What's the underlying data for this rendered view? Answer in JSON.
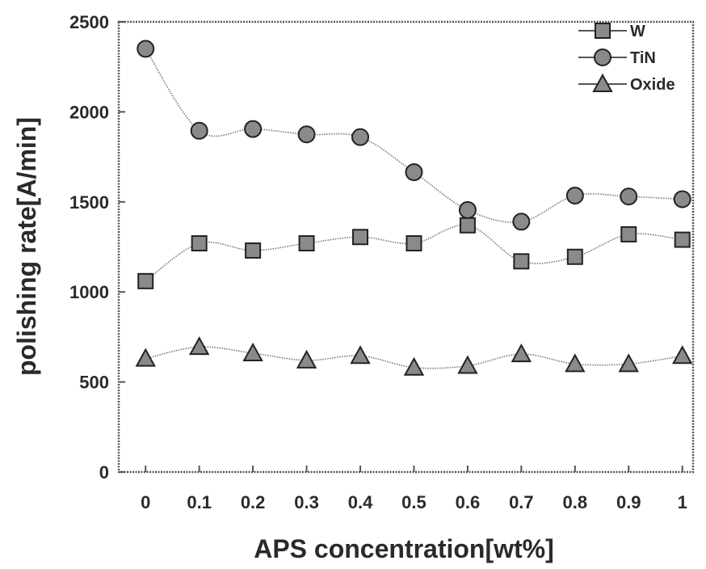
{
  "chart_data": {
    "type": "line",
    "xlabel": "APS concentration[wt%]",
    "ylabel": "polishing rate[A/min]",
    "x": [
      0,
      0.1,
      0.2,
      0.3,
      0.4,
      0.5,
      0.6,
      0.7,
      0.8,
      0.9,
      1
    ],
    "x_tick_labels": [
      "0",
      "0.1",
      "0.2",
      "0.3",
      "0.4",
      "0.5",
      "0.6",
      "0.7",
      "0.8",
      "0.9",
      "1"
    ],
    "y_ticks": [
      0,
      500,
      1000,
      1500,
      2000,
      2500
    ],
    "y_tick_labels": [
      "0",
      "500",
      "1000",
      "1500",
      "2000",
      "2500"
    ],
    "xlim": [
      -0.05,
      1.02
    ],
    "ylim": [
      0,
      2500
    ],
    "grid": false,
    "legend_position": "top-right",
    "series": [
      {
        "name": "W",
        "marker": "square",
        "values": [
          1060,
          1270,
          1230,
          1270,
          1305,
          1270,
          1370,
          1170,
          1195,
          1320,
          1290
        ]
      },
      {
        "name": "TiN",
        "marker": "circle",
        "values": [
          2350,
          1895,
          1905,
          1875,
          1860,
          1665,
          1455,
          1390,
          1535,
          1530,
          1515
        ]
      },
      {
        "name": "Oxide",
        "marker": "triangle",
        "values": [
          630,
          695,
          660,
          620,
          645,
          580,
          590,
          655,
          600,
          600,
          645
        ]
      }
    ]
  },
  "colors": {
    "marker_fill": "#8a8a8a",
    "marker_stroke": "#222222",
    "line": "#777777",
    "axis": "#555555"
  }
}
